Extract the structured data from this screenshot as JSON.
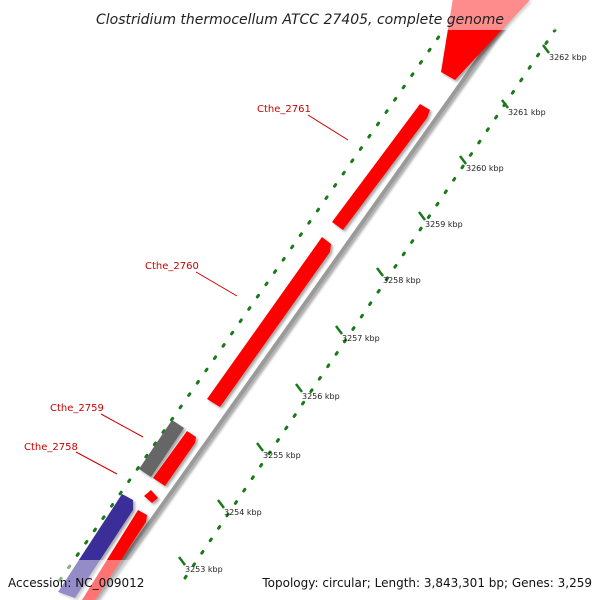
{
  "title": "Clostridium thermocellum ATCC 27405, complete genome",
  "footer": {
    "accession": "Accession: NC_009012",
    "summary": "Topology: circular; Length: 3,843,301 bp; Genes: 3,259"
  },
  "colors": {
    "gene_forward": "#ff0000",
    "gene_other": "#666666",
    "gene_reverse": "#3a2f99",
    "label": "#cc0000",
    "ticks": "#1a7a1a",
    "backbone": "#9a9a9a",
    "text": "#222222"
  },
  "ticks": [
    {
      "label": "3253 kbp"
    },
    {
      "label": "3254 kbp"
    },
    {
      "label": "3255 kbp"
    },
    {
      "label": "3256 kbp"
    },
    {
      "label": "3257 kbp"
    },
    {
      "label": "3258 kbp"
    },
    {
      "label": "3259 kbp"
    },
    {
      "label": "3260 kbp"
    },
    {
      "label": "3261 kbp"
    },
    {
      "label": "3262 kbp"
    }
  ],
  "labeled_genes": [
    {
      "name": "Cthe_2758"
    },
    {
      "name": "Cthe_2759"
    },
    {
      "name": "Cthe_2760"
    },
    {
      "name": "Cthe_2761"
    }
  ]
}
